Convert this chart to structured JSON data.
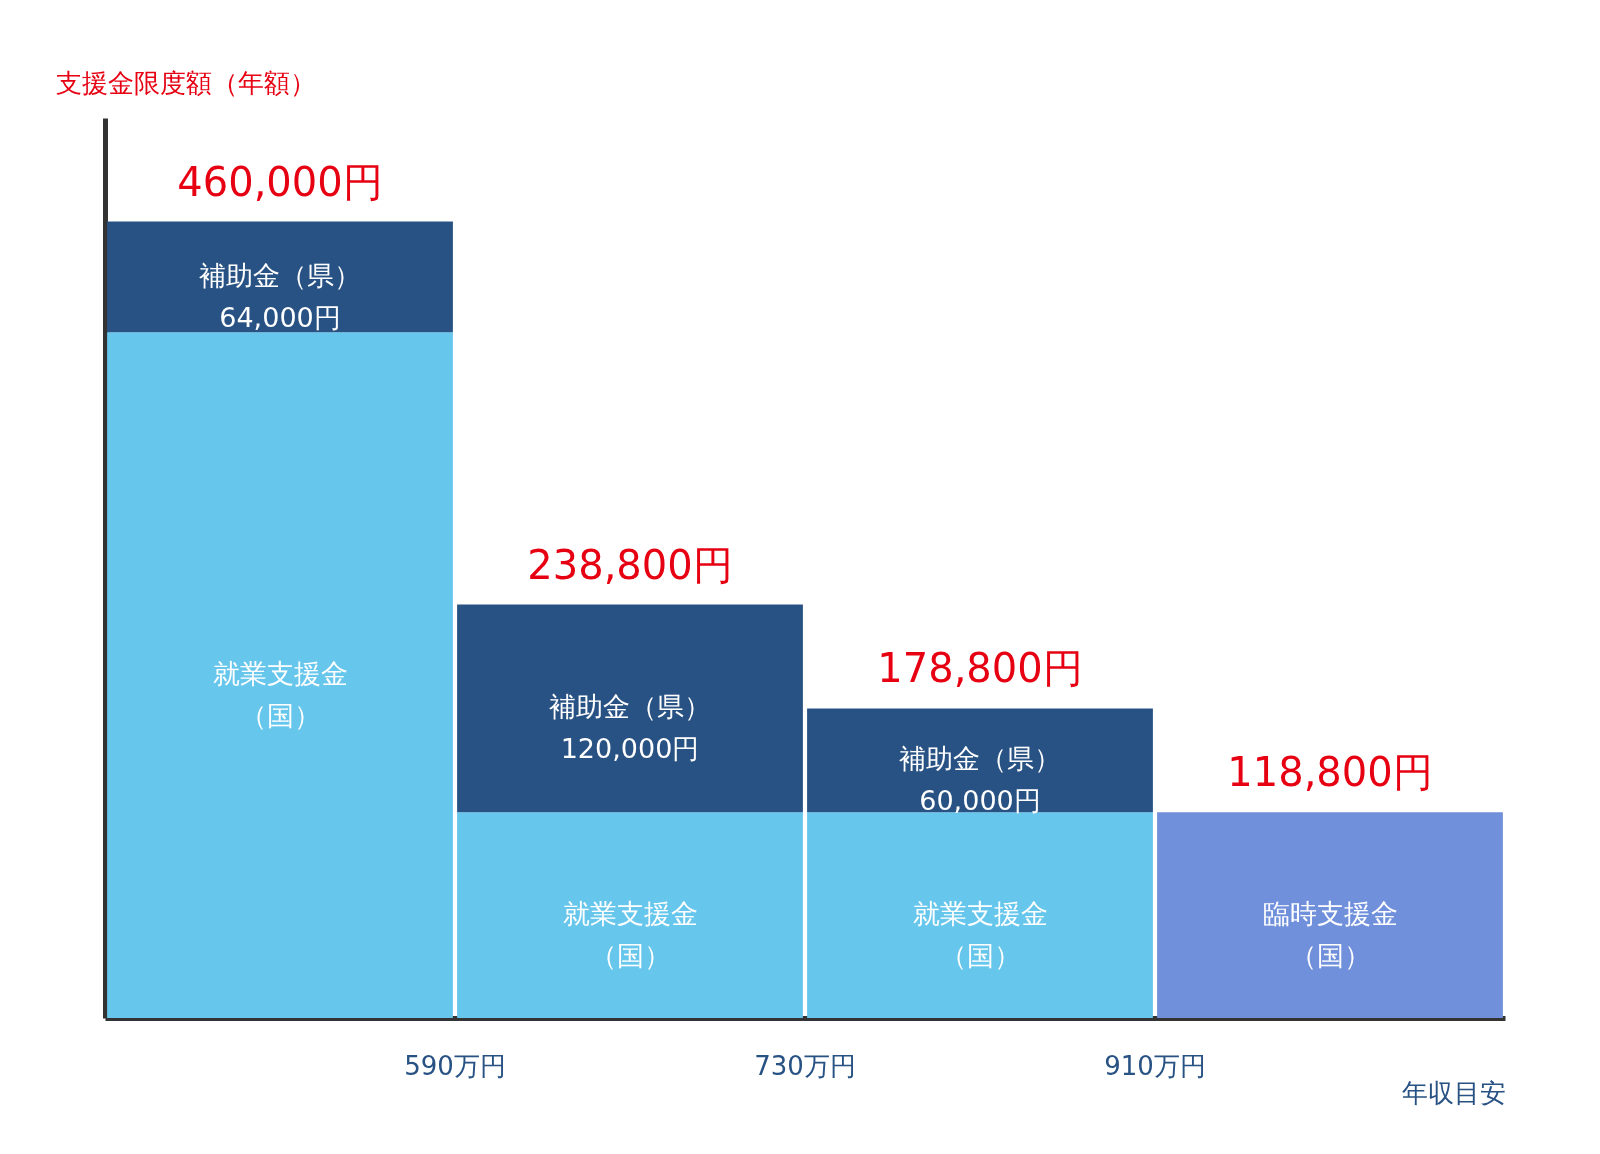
{
  "chart_data": {
    "type": "bar",
    "stacked": true,
    "ylabel": "支援金限度額（年額）",
    "xlabel": "年収目安",
    "categories": [
      null,
      null,
      null,
      null
    ],
    "series": [
      {
        "colors": [
          "#66c6ec",
          "#66c6ec",
          "#66c6ec",
          "#7090db"
        ],
        "values": [
          396000,
          118800,
          118800,
          118800
        ],
        "value_labels": [
          "就業支援金（国）",
          "就業支援金（国）",
          "就業支援金（国）",
          "臨時支援金（国）"
        ]
      },
      {
        "color": "#285283",
        "values": [
          64000,
          120000,
          60000,
          null
        ],
        "value_labels": [
          "補助金（県）\n64,000円",
          "補助金（県）\n120,000円",
          "補助金（県）\n60,000円",
          null
        ]
      }
    ],
    "totals": [
      "460,000円",
      "238,800円",
      "178,800円",
      "118,800円"
    ],
    "annotations": [
      "590万円",
      "730万円",
      "910万円"
    ],
    "tick_labels": false,
    "grid": false
  }
}
